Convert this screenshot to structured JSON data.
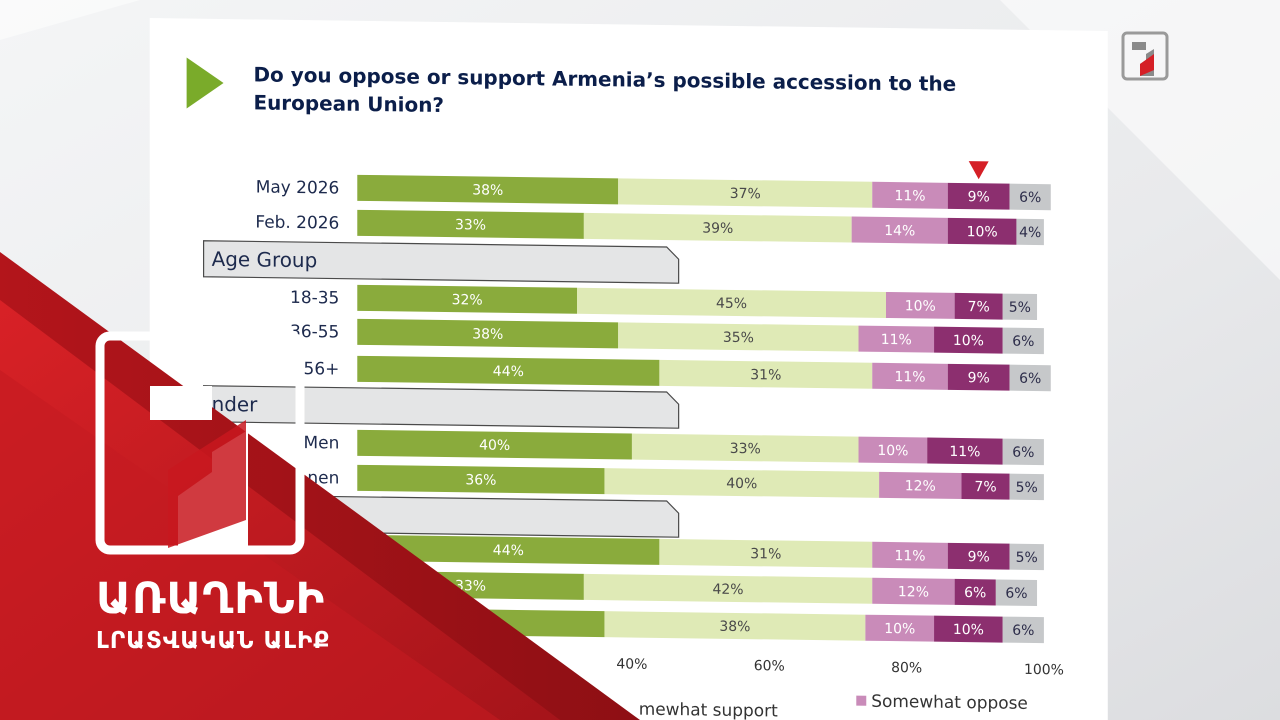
{
  "title": "Do you oppose or support Armenia’s possible accession to the European Union?",
  "title_lines": [
    "Do you oppose or support Armenia’s possible accession to the",
    "European Union?"
  ],
  "broadcaster": {
    "name": "ԱՌԱՂԻՆԻ",
    "subtitle": "ԼՐԱՏՎԱԿԱՆ ԱԼԻՔ",
    "logo_number": "1"
  },
  "colors": {
    "strongly_support": "#8aab3c",
    "somewhat_support": "#dfeab6",
    "somewhat_oppose": "#c98bb9",
    "strongly_oppose": "#8c2f6f",
    "remainder": "#c6c8ca",
    "section_header": "#e4e5e6",
    "accent_red": "#d51f26",
    "arrow_green": "#7aab2a"
  },
  "chart_data": {
    "type": "bar",
    "orientation": "horizontal",
    "stacked": true,
    "title": "Do you oppose or support Armenia’s possible accession to the European Union?",
    "xlim": [
      0,
      100
    ],
    "x_ticks": [
      "40%",
      "60%",
      "80%",
      "100%"
    ],
    "x_tick_values": [
      40,
      60,
      80,
      100
    ],
    "section_headers": [
      "Age Group",
      "nder"
    ],
    "categories": [
      "May 2026",
      "Feb. 2026",
      "18-35",
      "36-55",
      "56+",
      "Men",
      "nen",
      "",
      "",
      ""
    ],
    "series": [
      {
        "name": "",
        "values": [
          38,
          33,
          32,
          38,
          44,
          40,
          36,
          44,
          33,
          null
        ],
        "labels": [
          "38%",
          "33%",
          "32%",
          "38%",
          "44%",
          "40%",
          "36%",
          "44%",
          "33%",
          ""
        ]
      },
      {
        "name": "",
        "values": [
          37,
          39,
          45,
          35,
          31,
          33,
          40,
          31,
          42,
          38
        ],
        "labels": [
          "37%",
          "39%",
          "45%",
          "35%",
          "31%",
          "33%",
          "40%",
          "31%",
          "42%",
          "38%"
        ]
      },
      {
        "name": "",
        "values": [
          11,
          14,
          10,
          11,
          11,
          10,
          12,
          11,
          12,
          10
        ],
        "labels": [
          "11%",
          "14%",
          "10%",
          "11%",
          "11%",
          "10%",
          "12%",
          "11%",
          "12%",
          "10%"
        ]
      },
      {
        "name": "",
        "values": [
          9,
          10,
          7,
          10,
          9,
          11,
          7,
          9,
          6,
          10
        ],
        "labels": [
          "9%",
          "10%",
          "7%",
          "10%",
          "9%",
          "11%",
          "7%",
          "9%",
          "6%",
          "10%"
        ]
      },
      {
        "name": "",
        "values": [
          6,
          4,
          5,
          6,
          6,
          6,
          5,
          5,
          6,
          6
        ],
        "labels": [
          "6%",
          "4%",
          "5%",
          "6%",
          "6%",
          "6%",
          "5%",
          "5%",
          "6%",
          "6%"
        ]
      }
    ],
    "legend": [
      "mewhat support",
      "Somewhat oppose"
    ],
    "legend_position": "bottom",
    "highlight_marker": {
      "category": "May 2026",
      "series_index": 3
    }
  }
}
